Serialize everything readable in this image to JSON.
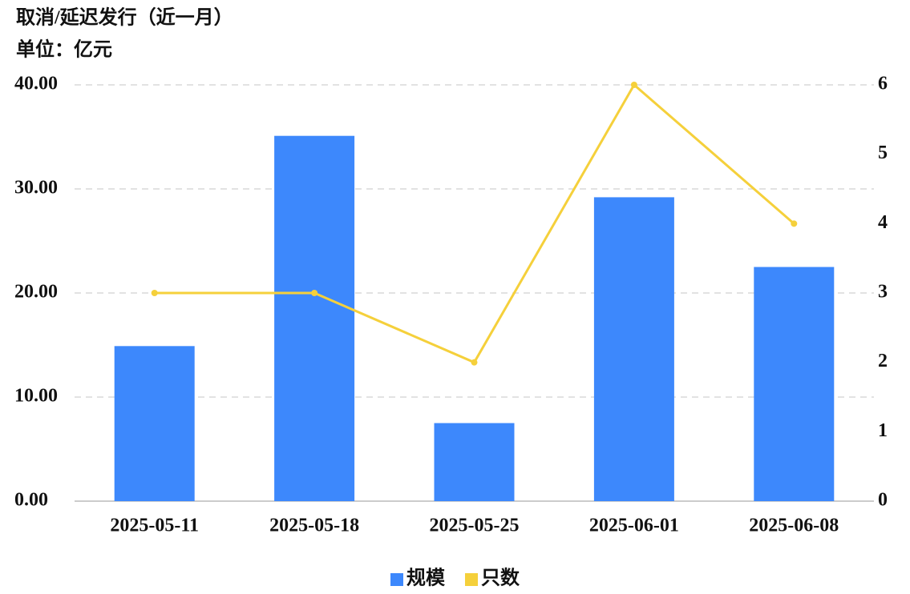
{
  "chart_data": {
    "type": "combo",
    "title": "取消/延迟发行（近一月）",
    "subtitle": "单位：亿元",
    "categories": [
      "2025-05-11",
      "2025-05-18",
      "2025-05-25",
      "2025-06-01",
      "2025-06-08"
    ],
    "series": [
      {
        "name": "规模",
        "type": "bar",
        "color": "#3d88fc",
        "values": [
          14.9,
          35.1,
          7.5,
          29.2,
          22.5
        ]
      },
      {
        "name": "只数",
        "type": "line",
        "axis": "y2",
        "color": "#f5d03b",
        "values": [
          3,
          3,
          2,
          6,
          4
        ]
      }
    ],
    "ylim": [
      0,
      40
    ],
    "yticks": [
      {
        "value": 0,
        "label": "0.00"
      },
      {
        "value": 10,
        "label": "10.00"
      },
      {
        "value": 20,
        "label": "20.00"
      },
      {
        "value": 30,
        "label": "30.00"
      },
      {
        "value": 40,
        "label": "40.00"
      }
    ],
    "y2lim": [
      0,
      6
    ],
    "y2ticks": [
      0,
      1,
      2,
      3,
      4,
      5,
      6
    ],
    "grid": true,
    "legend": "bottom"
  }
}
